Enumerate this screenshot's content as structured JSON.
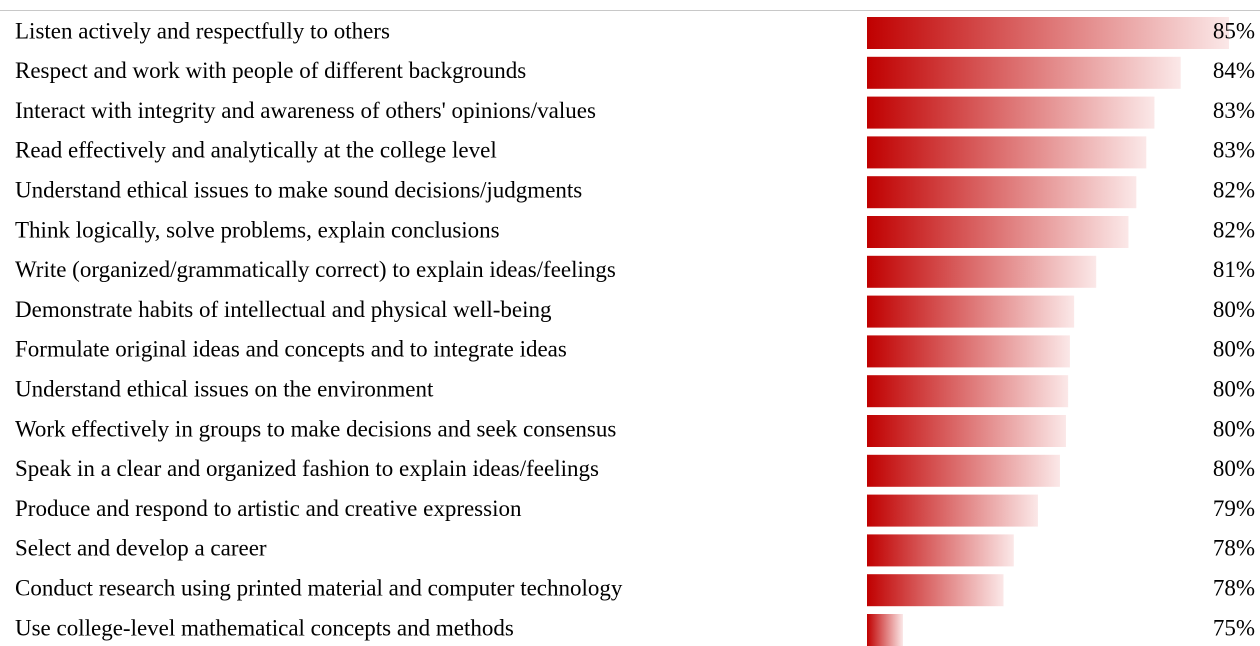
{
  "chart_data": {
    "type": "databar",
    "categories": [
      "Listen actively and respectfully to others",
      "Respect and work with people of different backgrounds",
      "Interact with integrity and awareness of others' opinions/values",
      "Read effectively and analytically at the college level",
      "Understand ethical issues to make sound decisions/judgments",
      "Think logically, solve problems, explain conclusions",
      "Write (organized/grammatically correct) to explain ideas/feelings",
      "Demonstrate habits of intellectual and physical well-being",
      "Formulate original ideas and concepts and to integrate ideas",
      "Understand ethical issues on the environment",
      "Work effectively in groups to make decisions and seek consensus",
      "Speak in a clear and organized fashion to explain ideas/feelings",
      "Produce and respond to artistic and creative expression",
      "Select and develop a career",
      "Conduct research using printed material and computer technology",
      "Use college-level mathematical concepts and methods"
    ],
    "values": [
      85.4,
      83.8,
      82.93,
      82.66,
      82.33,
      82.07,
      81.0,
      80.27,
      80.13,
      80.07,
      80.0,
      79.8,
      79.07,
      78.27,
      77.93,
      74.6
    ],
    "value_labels": [
      "85%",
      "84%",
      "83%",
      "83%",
      "82%",
      "82%",
      "81%",
      "80%",
      "80%",
      "80%",
      "80%",
      "80%",
      "79%",
      "78%",
      "78%",
      "75%"
    ],
    "color": "#c00000"
  }
}
